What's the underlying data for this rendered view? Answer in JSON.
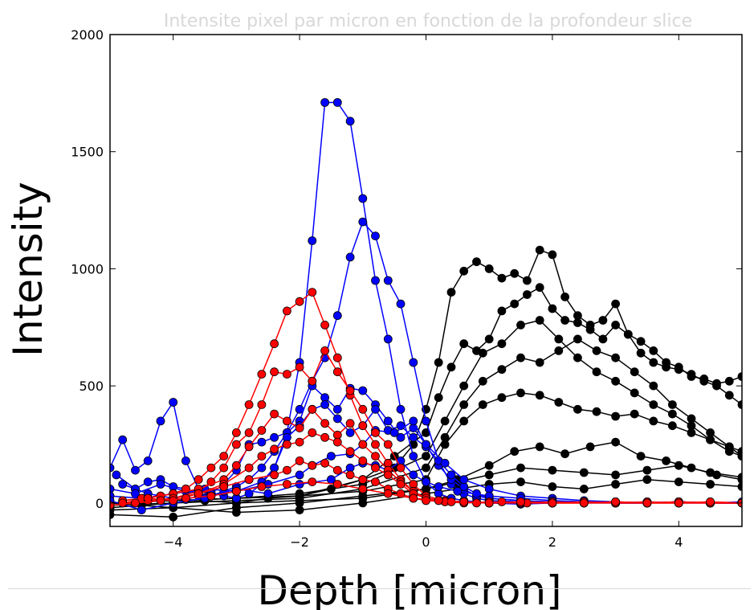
{
  "chart_data": {
    "type": "line",
    "title": "Intensite pixel par micron en fonction de la profondeur slice",
    "xlabel": "Depth [micron]",
    "ylabel": "Intensity",
    "xlim": [
      -5,
      5
    ],
    "ylim": [
      -100,
      2000
    ],
    "xticks": [
      -4,
      -2,
      0,
      2,
      4
    ],
    "xtick_labels": [
      "−4",
      "−2",
      "0",
      "2",
      "4"
    ],
    "yticks": [
      0,
      500,
      1000,
      1500,
      2000
    ],
    "ytick_labels": [
      "0",
      "500",
      "1000",
      "1500",
      "2000"
    ],
    "grid": false,
    "legend": "none",
    "colors": {
      "blue": "#0000ff",
      "red": "#ff0000",
      "black": "#000000"
    },
    "series": [
      {
        "color": "blue",
        "x": [
          -4.9,
          -4.6,
          -4.4,
          -4.2,
          -4.0,
          -3.8,
          -3.6,
          -3.4,
          -3.2,
          -3.0,
          -2.8,
          -2.6,
          -2.4,
          -2.2,
          -2.0,
          -1.8,
          -1.6,
          -1.4,
          -1.2,
          -1.0,
          -0.8,
          -0.6,
          -0.4,
          -0.2,
          0.0,
          0.2,
          0.4,
          0.6,
          0.8,
          1.0,
          1.5,
          2.0,
          2.5,
          3.0,
          3.5,
          4.0,
          4.5,
          5.0
        ],
        "y": [
          120,
          60,
          40,
          30,
          20,
          15,
          30,
          45,
          30,
          20,
          40,
          80,
          150,
          300,
          600,
          1120,
          1710,
          1710,
          1630,
          1300,
          950,
          700,
          400,
          200,
          90,
          40,
          20,
          10,
          5,
          0,
          -5,
          0,
          5,
          0,
          0,
          5,
          0,
          0
        ]
      },
      {
        "color": "blue",
        "x": [
          -4.8,
          -4.6,
          -4.4,
          -4.2,
          -4.0,
          -3.8,
          -3.6,
          -3.4,
          -3.2,
          -3.0,
          -2.8,
          -2.6,
          -2.4,
          -2.2,
          -2.0,
          -1.8,
          -1.6,
          -1.4,
          -1.2,
          -1.0,
          -0.8,
          -0.6,
          -0.4,
          -0.2,
          0.0,
          0.2,
          0.4,
          0.6,
          0.8,
          1.0,
          1.5,
          2.0,
          2.5,
          3.0,
          3.5,
          4.0,
          4.5,
          5.0
        ],
        "y": [
          80,
          60,
          90,
          100,
          70,
          60,
          40,
          30,
          50,
          70,
          100,
          150,
          220,
          300,
          400,
          520,
          620,
          800,
          1050,
          1200,
          1140,
          950,
          850,
          600,
          350,
          180,
          80,
          40,
          20,
          10,
          5,
          0,
          5,
          0,
          0,
          5,
          0,
          0
        ]
      },
      {
        "color": "blue",
        "x": [
          -5.0,
          -4.8,
          -4.6,
          -4.4,
          -4.2,
          -4.0,
          -3.8,
          -3.6,
          -3.4,
          -3.2,
          -3.0,
          -2.8,
          -2.6,
          -2.4,
          -2.2,
          -2.0,
          -1.8,
          -1.6,
          -1.4,
          -1.2,
          -1.0,
          -0.8,
          -0.6,
          -0.4,
          -0.2,
          0.0,
          0.2,
          0.4,
          0.6,
          0.8,
          1.0,
          1.5,
          2.0,
          2.5,
          3.0,
          3.5,
          4.0,
          4.5,
          5.0
        ],
        "y": [
          150,
          270,
          140,
          180,
          350,
          430,
          180,
          60,
          40,
          80,
          140,
          250,
          260,
          280,
          300,
          350,
          500,
          450,
          400,
          490,
          480,
          420,
          350,
          280,
          320,
          250,
          160,
          100,
          60,
          30,
          20,
          10,
          0,
          5,
          0,
          0,
          5,
          0,
          0
        ]
      },
      {
        "color": "blue",
        "x": [
          -5.0,
          -4.6,
          -4.2,
          -3.8,
          -3.4,
          -3.0,
          -2.6,
          -2.4,
          -2.2,
          -2.0,
          -1.8,
          -1.6,
          -1.4,
          -1.2,
          -1.0,
          -0.8,
          -0.6,
          -0.4,
          -0.2,
          0.0,
          0.2,
          0.4,
          0.6,
          0.8,
          1.0,
          1.5,
          2.0,
          2.5,
          3.0,
          3.5,
          4.0,
          4.5,
          5.0
        ],
        "y": [
          60,
          40,
          80,
          50,
          30,
          50,
          90,
          150,
          280,
          330,
          400,
          420,
          360,
          300,
          330,
          400,
          310,
          330,
          280,
          240,
          180,
          120,
          70,
          40,
          20,
          10,
          5,
          0,
          0,
          5,
          0,
          0,
          5
        ]
      },
      {
        "color": "blue",
        "x": [
          -5.0,
          -4.5,
          -4.0,
          -3.5,
          -3.0,
          -2.5,
          -2.0,
          -1.8,
          -1.5,
          -1.2,
          -1.0,
          -0.8,
          -0.5,
          -0.2,
          0.0,
          0.3,
          0.6,
          1.0,
          1.5,
          2.0,
          2.5,
          3.0,
          3.5,
          4.0,
          4.5,
          5.0
        ],
        "y": [
          30,
          20,
          40,
          60,
          50,
          80,
          120,
          160,
          200,
          210,
          250,
          310,
          300,
          350,
          250,
          170,
          100,
          60,
          30,
          20,
          10,
          5,
          0,
          5,
          0,
          0
        ]
      },
      {
        "color": "blue",
        "x": [
          -5.0,
          -4.5,
          -4.0,
          -3.5,
          -3.0,
          -2.5,
          -2.0,
          -1.5,
          -1.2,
          -1.0,
          -0.8,
          -0.6,
          -0.4,
          -0.2,
          0.0,
          0.2,
          0.5,
          1.0,
          1.5,
          2.0,
          2.5,
          3.0,
          3.5,
          4.0,
          4.5,
          5.0
        ],
        "y": [
          10,
          -30,
          0,
          20,
          60,
          40,
          80,
          100,
          150,
          170,
          160,
          140,
          180,
          120,
          90,
          70,
          50,
          30,
          20,
          10,
          5,
          0,
          0,
          5,
          0,
          0
        ]
      },
      {
        "color": "red",
        "x": [
          -4.8,
          -4.5,
          -4.2,
          -4.0,
          -3.8,
          -3.6,
          -3.4,
          -3.2,
          -3.0,
          -2.8,
          -2.6,
          -2.4,
          -2.2,
          -2.0,
          -1.8,
          -1.6,
          -1.4,
          -1.2,
          -1.0,
          -0.8,
          -0.6,
          -0.4,
          -0.2,
          0.0,
          0.3,
          0.6,
          1.0,
          1.5,
          2.0,
          2.5,
          3.0,
          3.5,
          4.0,
          4.5,
          5.0
        ],
        "y": [
          10,
          20,
          30,
          40,
          60,
          100,
          150,
          200,
          300,
          420,
          550,
          680,
          820,
          860,
          900,
          760,
          620,
          460,
          330,
          250,
          170,
          100,
          50,
          20,
          10,
          5,
          0,
          5,
          0,
          0,
          5,
          0,
          0,
          5,
          0
        ]
      },
      {
        "color": "red",
        "x": [
          -4.8,
          -4.4,
          -4.0,
          -3.6,
          -3.4,
          -3.2,
          -3.0,
          -2.8,
          -2.6,
          -2.4,
          -2.2,
          -2.0,
          -1.8,
          -1.6,
          -1.4,
          -1.2,
          -1.0,
          -0.8,
          -0.6,
          -0.4,
          -0.2,
          0.0,
          0.3,
          0.6,
          1.0,
          1.5,
          2.0,
          2.5,
          3.0,
          3.5,
          4.0,
          4.5,
          5.0
        ],
        "y": [
          0,
          10,
          20,
          50,
          90,
          150,
          250,
          300,
          420,
          560,
          550,
          580,
          520,
          650,
          560,
          480,
          400,
          300,
          250,
          150,
          80,
          30,
          10,
          5,
          0,
          0,
          5,
          0,
          0,
          5,
          0,
          0,
          0
        ]
      },
      {
        "color": "red",
        "x": [
          -4.8,
          -4.4,
          -4.0,
          -3.6,
          -3.2,
          -3.0,
          -2.8,
          -2.6,
          -2.4,
          -2.2,
          -2.0,
          -1.8,
          -1.6,
          -1.4,
          -1.2,
          -1.0,
          -0.8,
          -0.6,
          -0.4,
          -0.2,
          0.0,
          0.3,
          0.6,
          1.0,
          1.5,
          2.0,
          2.5,
          3.0,
          3.5,
          4.0,
          4.5,
          5.0
        ],
        "y": [
          10,
          20,
          40,
          60,
          100,
          160,
          240,
          310,
          380,
          350,
          320,
          400,
          340,
          290,
          340,
          250,
          200,
          140,
          90,
          50,
          20,
          10,
          5,
          0,
          5,
          0,
          0,
          5,
          0,
          0,
          0,
          0
        ]
      },
      {
        "color": "red",
        "x": [
          -4.8,
          -4.4,
          -4.0,
          -3.6,
          -3.2,
          -2.8,
          -2.6,
          -2.4,
          -2.2,
          -2.0,
          -1.8,
          -1.6,
          -1.4,
          -1.2,
          -1.0,
          -0.8,
          -0.6,
          -0.4,
          -0.2,
          0.0,
          0.3,
          0.6,
          1.0,
          1.5,
          2.0,
          2.5,
          3.0,
          3.5,
          4.0,
          4.5,
          5.0
        ],
        "y": [
          0,
          10,
          20,
          40,
          80,
          150,
          200,
          230,
          250,
          260,
          300,
          280,
          260,
          220,
          180,
          150,
          120,
          80,
          40,
          20,
          5,
          0,
          5,
          0,
          0,
          5,
          0,
          0,
          5,
          0,
          0
        ]
      },
      {
        "color": "red",
        "x": [
          -4.8,
          -4.4,
          -4.0,
          -3.6,
          -3.2,
          -2.8,
          -2.4,
          -2.2,
          -2.0,
          -1.8,
          -1.6,
          -1.4,
          -1.2,
          -1.0,
          -0.8,
          -0.6,
          -0.4,
          -0.2,
          0.0,
          0.4,
          0.8,
          1.2,
          1.6,
          2.0,
          2.5,
          3.0,
          3.5,
          4.0,
          4.5,
          5.0
        ],
        "y": [
          0,
          20,
          10,
          40,
          70,
          100,
          120,
          140,
          180,
          160,
          170,
          140,
          120,
          100,
          90,
          60,
          40,
          20,
          10,
          5,
          0,
          5,
          0,
          0,
          5,
          0,
          0,
          5,
          0,
          0
        ]
      },
      {
        "color": "red",
        "x": [
          -5.0,
          -4.6,
          -4.2,
          -3.8,
          -3.4,
          -3.0,
          -2.6,
          -2.2,
          -1.8,
          -1.4,
          -1.0,
          -0.6,
          -0.2,
          0.2,
          0.6,
          1.0,
          1.5,
          2.0,
          2.5,
          3.0,
          3.5,
          4.0,
          4.5,
          5.0
        ],
        "y": [
          -10,
          0,
          10,
          20,
          30,
          50,
          70,
          80,
          90,
          80,
          60,
          40,
          20,
          10,
          5,
          0,
          5,
          0,
          0,
          5,
          0,
          0,
          5,
          0
        ]
      },
      {
        "color": "black",
        "x": [
          -5.0,
          -4.5,
          -4.0,
          -3.5,
          -3.0,
          -2.5,
          -2.0,
          -1.5,
          -1.0,
          -0.5,
          -0.2,
          0.0,
          0.2,
          0.4,
          0.6,
          0.8,
          1.0,
          1.2,
          1.4,
          1.6,
          1.8,
          2.0,
          2.2,
          2.4,
          2.6,
          2.8,
          3.0,
          3.2,
          3.4,
          3.6,
          3.8,
          4.0,
          4.2,
          4.4,
          4.6,
          4.8,
          5.0
        ],
        "y": [
          -20,
          -10,
          0,
          10,
          0,
          20,
          30,
          60,
          100,
          150,
          250,
          400,
          600,
          900,
          990,
          1030,
          1000,
          960,
          980,
          950,
          1080,
          1060,
          880,
          800,
          760,
          780,
          850,
          720,
          690,
          650,
          600,
          580,
          540,
          530,
          510,
          520,
          540
        ]
      },
      {
        "color": "black",
        "x": [
          -5.0,
          -4.0,
          -3.0,
          -2.0,
          -1.0,
          -0.5,
          0.0,
          0.2,
          0.4,
          0.6,
          0.8,
          1.0,
          1.2,
          1.4,
          1.6,
          1.8,
          2.0,
          2.2,
          2.4,
          2.6,
          2.8,
          3.0,
          3.2,
          3.4,
          3.6,
          3.8,
          4.0,
          4.2,
          4.4,
          4.6,
          4.8,
          5.0
        ],
        "y": [
          0,
          10,
          20,
          30,
          100,
          200,
          300,
          450,
          580,
          680,
          650,
          700,
          820,
          850,
          890,
          920,
          830,
          780,
          770,
          740,
          700,
          760,
          720,
          640,
          600,
          580,
          570,
          550,
          520,
          500,
          460,
          420
        ]
      },
      {
        "color": "black",
        "x": [
          -5.0,
          -4.0,
          -3.0,
          -2.0,
          -1.0,
          0.0,
          0.3,
          0.6,
          0.9,
          1.2,
          1.5,
          1.8,
          2.1,
          2.4,
          2.7,
          3.0,
          3.3,
          3.6,
          3.9,
          4.2,
          4.5,
          4.8,
          5.0
        ],
        "y": [
          0,
          10,
          20,
          40,
          80,
          200,
          350,
          500,
          640,
          680,
          760,
          780,
          700,
          620,
          560,
          520,
          470,
          420,
          380,
          330,
          270,
          220,
          200
        ]
      },
      {
        "color": "black",
        "x": [
          -5.0,
          -4.0,
          -3.0,
          -2.0,
          -1.0,
          0.0,
          0.3,
          0.6,
          0.9,
          1.2,
          1.5,
          1.8,
          2.1,
          2.4,
          2.7,
          3.0,
          3.3,
          3.6,
          3.9,
          4.2,
          4.5,
          4.8,
          5.0
        ],
        "y": [
          -10,
          0,
          10,
          20,
          60,
          150,
          280,
          420,
          520,
          570,
          620,
          600,
          650,
          700,
          650,
          620,
          560,
          500,
          420,
          360,
          300,
          240,
          200
        ]
      },
      {
        "color": "black",
        "x": [
          -5.0,
          -4.0,
          -3.0,
          -2.0,
          -1.0,
          0.0,
          0.3,
          0.6,
          0.9,
          1.2,
          1.5,
          1.8,
          2.1,
          2.4,
          2.7,
          3.0,
          3.3,
          3.6,
          3.9,
          4.2,
          4.5,
          4.8,
          5.0
        ],
        "y": [
          0,
          10,
          20,
          30,
          50,
          100,
          250,
          350,
          420,
          450,
          470,
          460,
          430,
          400,
          390,
          370,
          380,
          350,
          330,
          300,
          270,
          240,
          220
        ]
      },
      {
        "color": "black",
        "x": [
          -5.0,
          -4.0,
          -3.0,
          -2.0,
          -1.0,
          0.0,
          0.5,
          1.0,
          1.4,
          1.8,
          2.2,
          2.6,
          3.0,
          3.4,
          3.8,
          4.2,
          4.6,
          5.0
        ],
        "y": [
          -30,
          -20,
          0,
          10,
          20,
          60,
          100,
          160,
          220,
          240,
          210,
          240,
          260,
          200,
          180,
          150,
          120,
          100
        ]
      },
      {
        "color": "black",
        "x": [
          -5.0,
          -4.0,
          -3.0,
          -2.0,
          -1.0,
          0.0,
          0.5,
          1.0,
          1.5,
          2.0,
          2.5,
          3.0,
          3.5,
          4.0,
          4.5,
          5.0
        ],
        "y": [
          -50,
          -60,
          -20,
          0,
          30,
          60,
          90,
          120,
          150,
          140,
          130,
          120,
          140,
          160,
          130,
          110
        ]
      },
      {
        "color": "black",
        "x": [
          -5.0,
          -4.0,
          -3.0,
          -2.0,
          -1.0,
          0.0,
          0.5,
          1.0,
          1.5,
          2.0,
          2.5,
          3.0,
          3.5,
          4.0,
          4.5,
          5.0
        ],
        "y": [
          0,
          -20,
          -40,
          -30,
          0,
          40,
          60,
          80,
          90,
          70,
          60,
          80,
          100,
          90,
          80,
          70
        ]
      }
    ]
  }
}
